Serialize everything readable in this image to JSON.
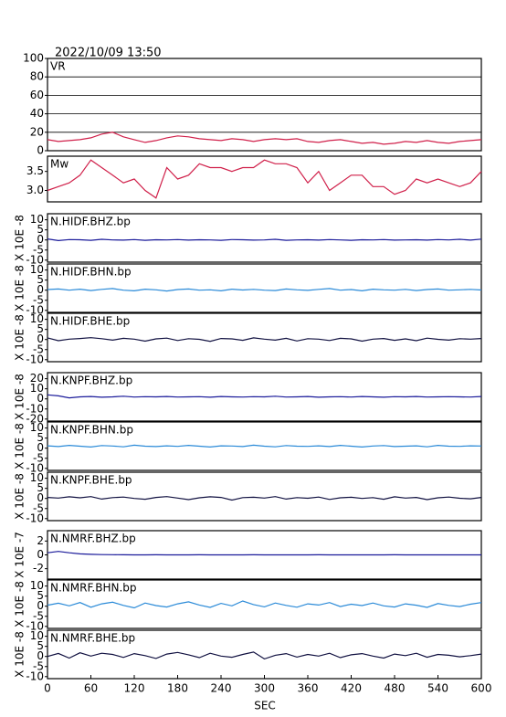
{
  "chart_data": {
    "type": "line",
    "title": "2022/10/09  13:50",
    "xlabel": "SEC",
    "x": [
      0,
      15,
      30,
      45,
      60,
      75,
      90,
      105,
      120,
      135,
      150,
      165,
      180,
      195,
      210,
      225,
      240,
      255,
      270,
      285,
      300,
      315,
      330,
      345,
      360,
      375,
      390,
      405,
      420,
      435,
      450,
      465,
      480,
      495,
      510,
      525,
      540,
      555,
      570,
      585,
      600
    ],
    "xlim": [
      0,
      600
    ],
    "xticks": [
      0,
      60,
      120,
      180,
      240,
      300,
      360,
      420,
      480,
      540,
      600
    ],
    "panels": [
      {
        "label": "VR",
        "color": "#d0204a",
        "grid": true,
        "ylim": [
          0,
          100
        ],
        "yticks": [
          0,
          20,
          40,
          60,
          80,
          100
        ],
        "values": [
          12,
          10,
          11,
          12,
          14,
          18,
          20,
          15,
          12,
          9,
          11,
          14,
          16,
          15,
          13,
          12,
          11,
          13,
          12,
          10,
          12,
          13,
          12,
          13,
          10,
          9,
          11,
          12,
          10,
          8,
          9,
          7,
          8,
          10,
          9,
          11,
          9,
          8,
          10,
          11,
          12
        ]
      },
      {
        "label": "Mw",
        "color": "#d0204a",
        "ylim": [
          2.7,
          3.9
        ],
        "yticks": [
          {
            "value": 3,
            "label": "3.0"
          },
          3.5
        ],
        "values": [
          3.0,
          3.1,
          3.2,
          3.4,
          3.8,
          3.6,
          3.4,
          3.2,
          3.3,
          3.0,
          2.8,
          3.6,
          3.3,
          3.4,
          3.7,
          3.6,
          3.6,
          3.5,
          3.6,
          3.6,
          3.8,
          3.7,
          3.7,
          3.6,
          3.2,
          3.5,
          3.0,
          3.2,
          3.4,
          3.4,
          3.1,
          3.1,
          2.9,
          3.0,
          3.3,
          3.2,
          3.3,
          3.2,
          3.1,
          3.2,
          3.5
        ]
      },
      {
        "label": "N.HIDF.BHZ.bp",
        "ylabel": "X 10E -8",
        "color": "#1a1a9a",
        "ylim": [
          -11,
          13
        ],
        "yticks": [
          -10,
          -5,
          0,
          5,
          10
        ],
        "values": [
          0.5,
          -0.3,
          0.2,
          0.1,
          -0.2,
          0.3,
          0,
          -0.1,
          0.2,
          -0.2,
          0.1,
          0,
          0.2,
          -0.1,
          0.1,
          0,
          -0.2,
          0.2,
          0.1,
          -0.1,
          0,
          0.3,
          -0.2,
          0,
          0.1,
          -0.1,
          0.2,
          0,
          -0.2,
          0.1,
          0,
          0.2,
          -0.1,
          0,
          0.1,
          -0.1,
          0.2,
          0,
          0.3,
          -0.1,
          0.4
        ]
      },
      {
        "label": "N.HIDF.BHN.bp",
        "ylabel": "X 10E -8",
        "color": "#2a8ad8",
        "ylim": [
          -11,
          13
        ],
        "yticks": [
          -10,
          -5,
          0,
          5,
          10
        ],
        "values": [
          0.3,
          0.6,
          0,
          0.5,
          -0.2,
          0.4,
          0.8,
          0,
          -0.3,
          0.5,
          0.2,
          -0.4,
          0.3,
          0.6,
          0,
          0.2,
          -0.3,
          0.5,
          0.1,
          0.4,
          0,
          -0.2,
          0.6,
          0.2,
          -0.1,
          0.4,
          0.8,
          0,
          0.3,
          -0.3,
          0.5,
          0.2,
          0,
          0.4,
          -0.2,
          0.3,
          0.6,
          0,
          0.2,
          0.4,
          0.1
        ]
      },
      {
        "label": "N.HIDF.BHE.bp",
        "ylabel": "X 10E -8",
        "color": "#101040",
        "ylim": [
          -11,
          13
        ],
        "yticks": [
          -10,
          -5,
          0,
          5,
          10
        ],
        "values": [
          0.8,
          -0.6,
          0.2,
          0.5,
          0.9,
          0.4,
          -0.3,
          0.6,
          0.2,
          -0.8,
          0.3,
          0.7,
          -0.5,
          0.4,
          0.1,
          -0.9,
          0.5,
          0.3,
          -0.4,
          0.8,
          0.2,
          -0.3,
          0.6,
          -0.7,
          0.4,
          0.2,
          -0.5,
          0.6,
          0.3,
          -0.8,
          0.2,
          0.5,
          -0.4,
          0.3,
          -0.6,
          0.7,
          0.1,
          -0.3,
          0.4,
          0.2,
          0.5
        ]
      },
      {
        "label": "N.KNPF.BHZ.bp",
        "ylabel": "X 10E -8",
        "color": "#1a1a9a",
        "ylim": [
          -22,
          26
        ],
        "yticks": [
          -20,
          -10,
          0,
          10,
          20
        ],
        "values": [
          4,
          3,
          1,
          2,
          2.4,
          1.6,
          2,
          2.6,
          1.8,
          2.2,
          2,
          2.4,
          1.8,
          2,
          2.2,
          1.6,
          2.4,
          2,
          1.8,
          2.2,
          2,
          2.6,
          1.8,
          2,
          2.4,
          1.6,
          2,
          2.2,
          1.8,
          2.4,
          2,
          1.6,
          2.2,
          2,
          2.4,
          1.8,
          2,
          2.2,
          2,
          1.8,
          2.4
        ]
      },
      {
        "label": "N.KNPF.BHN.bp",
        "ylabel": "X 10E -8",
        "color": "#2a8ad8",
        "ylim": [
          -11,
          13
        ],
        "yticks": [
          -10,
          -5,
          0,
          5,
          10
        ],
        "values": [
          1.2,
          0.8,
          1.4,
          1,
          0.6,
          1.3,
          1.1,
          0.7,
          1.5,
          1,
          0.8,
          1.2,
          0.9,
          1.4,
          1,
          0.6,
          1.2,
          1.1,
          0.8,
          1.5,
          1,
          0.7,
          1.3,
          1,
          0.9,
          1.2,
          0.8,
          1.4,
          1,
          0.6,
          1.1,
          1.3,
          0.8,
          1,
          1.2,
          0.7,
          1.4,
          1,
          0.9,
          1.2,
          1.1
        ]
      },
      {
        "label": "N.KNPF.BHE.bp",
        "ylabel": "X 10E -8",
        "color": "#101040",
        "ylim": [
          -11,
          13
        ],
        "yticks": [
          -10,
          -5,
          0,
          5,
          10
        ],
        "values": [
          0.5,
          0.2,
          0.8,
          0.3,
          0.9,
          -0.3,
          0.4,
          0.7,
          0,
          -0.4,
          0.5,
          0.9,
          0.2,
          -0.6,
          0.3,
          0.8,
          0.5,
          -0.8,
          0.4,
          0.6,
          0.2,
          0.9,
          -0.3,
          0.4,
          0.1,
          0.7,
          -0.5,
          0.3,
          0.6,
          0,
          0.4,
          -0.4,
          0.8,
          0.2,
          0.5,
          -0.6,
          0.3,
          0.7,
          0.1,
          -0.2,
          0.5
        ]
      },
      {
        "label": "N.NMRF.BHZ.bp",
        "ylabel": "X 10E -7",
        "color": "#1a1a9a",
        "ylim": [
          -3.5,
          3.5
        ],
        "yticks": [
          -2,
          0,
          2
        ],
        "values": [
          0.3,
          0.5,
          0.3,
          0.15,
          0.08,
          0.04,
          0.02,
          0.01,
          0,
          0,
          0.01,
          0,
          0,
          0,
          0.01,
          0,
          0,
          0,
          0,
          0.01,
          0,
          0,
          0,
          0,
          0,
          0.01,
          0,
          0,
          0,
          0,
          0,
          0,
          0.01,
          0,
          0,
          0,
          0,
          0,
          0,
          0,
          0
        ]
      },
      {
        "label": "N.NMRF.BHN.bp",
        "ylabel": "X 10E -8",
        "color": "#2a8ad8",
        "ylim": [
          -11,
          13
        ],
        "yticks": [
          -10,
          -5,
          0,
          5,
          10
        ],
        "values": [
          0.5,
          1.5,
          0.2,
          1.8,
          -0.5,
          1.2,
          2,
          0.4,
          -0.8,
          1.6,
          0.3,
          -0.4,
          1.2,
          2.2,
          0.6,
          -0.6,
          1.4,
          0.2,
          2.6,
          0.8,
          -0.3,
          1.6,
          0.4,
          -0.5,
          1.2,
          0.6,
          1.8,
          -0.2,
          1,
          0.3,
          1.6,
          0.2,
          -0.4,
          1.2,
          0.5,
          -0.6,
          1.3,
          0.4,
          -0.2,
          1,
          1.8
        ]
      },
      {
        "label": "N.NMRF.BHE.bp",
        "ylabel": "X 10E -8",
        "color": "#101040",
        "ylim": [
          -11,
          13
        ],
        "yticks": [
          -10,
          -5,
          0,
          5,
          10
        ],
        "values": [
          0,
          1.5,
          -0.8,
          1.8,
          0.2,
          1.6,
          1,
          -0.5,
          1.4,
          0.4,
          -1,
          1.2,
          2,
          0.8,
          -0.6,
          1.6,
          0.2,
          -0.4,
          1,
          2.2,
          -1.2,
          0.6,
          1.4,
          -0.3,
          1,
          0.2,
          1.6,
          -0.6,
          0.8,
          1.4,
          0.2,
          -0.8,
          1.2,
          0.4,
          1.6,
          -0.4,
          1,
          0.6,
          -0.2,
          0.4,
          1.2
        ]
      }
    ]
  }
}
